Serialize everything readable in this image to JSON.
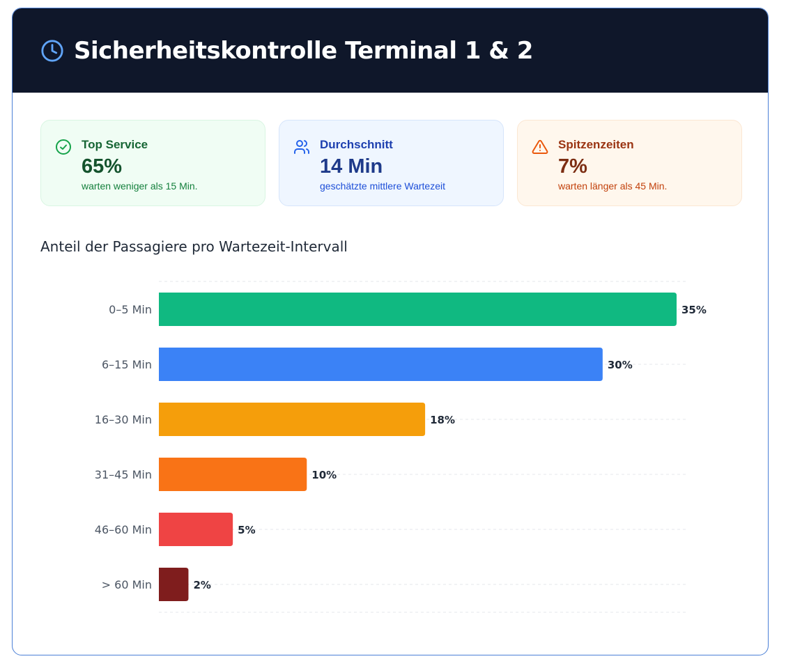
{
  "header": {
    "title": "Sicherheitskontrolle Terminal 1 & 2",
    "icon": "clock-icon"
  },
  "stats": [
    {
      "label": "Top Service",
      "value": "65%",
      "desc": "warten weniger als 15 Min.",
      "icon": "check-circle-icon"
    },
    {
      "label": "Durchschnitt",
      "value": "14 Min",
      "desc": "geschätzte mittlere Wartezeit",
      "icon": "users-icon"
    },
    {
      "label": "Spitzenzeiten",
      "value": "7%",
      "desc": "warten länger als 45 Min.",
      "icon": "warning-icon"
    }
  ],
  "chart_data": {
    "type": "bar",
    "orientation": "horizontal",
    "title": "Anteil der Passagiere pro Wartezeit-Intervall",
    "categories": [
      "0–5 Min",
      "6–15 Min",
      "16–30 Min",
      "31–45 Min",
      "46–60 Min",
      "> 60 Min"
    ],
    "values": [
      35,
      30,
      18,
      10,
      5,
      2
    ],
    "value_labels": [
      "35%",
      "30%",
      "18%",
      "10%",
      "5%",
      "2%"
    ],
    "colors": [
      "#10b981",
      "#3b82f6",
      "#f59e0b",
      "#f97316",
      "#ef4444",
      "#7f1d1d"
    ],
    "xlim": [
      0,
      35
    ],
    "grid": true
  }
}
